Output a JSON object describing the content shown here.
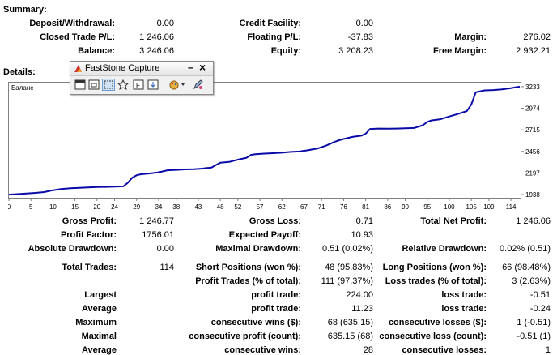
{
  "summary": {
    "heading": "Summary:",
    "deposit_label": "Deposit/Withdrawal:",
    "deposit_value": "0.00",
    "credit_label": "Credit Facility:",
    "credit_value": "0.00",
    "closed_label": "Closed Trade P/L:",
    "closed_value": "1 246.06",
    "floating_label": "Floating P/L:",
    "floating_value": "-37.83",
    "margin_label": "Margin:",
    "margin_value": "276.02",
    "balance_label": "Balance:",
    "balance_value": "3 246.06",
    "equity_label": "Equity:",
    "equity_value": "3 208.23",
    "free_margin_label": "Free Margin:",
    "free_margin_value": "2 932.21"
  },
  "details": {
    "heading": "Details:"
  },
  "capture_window": {
    "title": "FastStone Capture",
    "minimize": "–",
    "close": "×",
    "tools": [
      "capture-active-window-icon",
      "capture-window-object-icon",
      "capture-rectangle-icon",
      "capture-freehand-icon",
      "capture-fullscreen-icon",
      "capture-scrolling-icon",
      "output-settings-icon",
      "editor-icon"
    ],
    "accent": "#d0302a"
  },
  "chart_data": {
    "type": "line",
    "title": "Баланс",
    "line_color": "#0a0aa8",
    "grid": false,
    "x_ticks": [
      0,
      5,
      10,
      15,
      20,
      24,
      29,
      34,
      38,
      43,
      48,
      52,
      57,
      62,
      67,
      71,
      76,
      81,
      86,
      90,
      95,
      100,
      105,
      109,
      114
    ],
    "y_ticks": [
      1938,
      2197,
      2456,
      2715,
      2974,
      3233
    ],
    "xlim": [
      0,
      116
    ],
    "ylim": [
      1900,
      3290
    ],
    "series": [
      {
        "x": [
          0,
          3,
          6,
          8,
          10,
          12,
          14,
          16,
          18,
          20,
          22,
          24,
          26,
          27,
          28,
          29,
          30,
          32,
          34,
          36,
          38,
          40,
          42,
          44,
          45,
          46,
          47,
          48,
          50,
          52,
          54,
          55,
          56,
          58,
          60,
          62,
          64,
          66,
          68,
          70,
          72,
          74,
          75,
          76,
          78,
          80,
          81,
          82,
          84,
          86,
          88,
          90,
          92,
          94,
          95,
          96,
          98,
          100,
          102,
          104,
          105,
          106,
          108,
          110,
          112,
          114,
          116
        ],
        "y": [
          1938,
          1948,
          1958,
          1968,
          1990,
          2006,
          2014,
          2020,
          2024,
          2028,
          2030,
          2033,
          2037,
          2080,
          2140,
          2170,
          2182,
          2192,
          2205,
          2230,
          2234,
          2240,
          2243,
          2250,
          2258,
          2262,
          2293,
          2320,
          2330,
          2357,
          2380,
          2415,
          2422,
          2430,
          2435,
          2440,
          2450,
          2455,
          2472,
          2490,
          2525,
          2572,
          2590,
          2605,
          2630,
          2645,
          2668,
          2725,
          2730,
          2728,
          2730,
          2733,
          2737,
          2770,
          2810,
          2828,
          2842,
          2875,
          2905,
          2940,
          3020,
          3165,
          3188,
          3192,
          3200,
          3215,
          3233
        ]
      }
    ]
  },
  "stats_rows": [
    {
      "c1l": "Gross Profit:",
      "c1v": "1 246.77",
      "c2l": "Gross Loss:",
      "c2v": "0.71",
      "c3l": "Total Net Profit:",
      "c3v": "1 246.06"
    },
    {
      "c1l": "Profit Factor:",
      "c1v": "1756.01",
      "c2l": "Expected Payoff:",
      "c2v": "10.93",
      "c3l": "",
      "c3v": ""
    },
    {
      "c1l": "Absolute Drawdown:",
      "c1v": "0.00",
      "c2l": "Maximal Drawdown:",
      "c2v": "0.51 (0.02%)",
      "c3l": "Relative Drawdown:",
      "c3v": "0.02% (0.51)"
    },
    {
      "c1l": "Total Trades:",
      "c1v": "114",
      "c2l": "Short Positions (won %):",
      "c2v": "48 (95.83%)",
      "c3l": "Long Positions (won %):",
      "c3v": "66 (98.48%)"
    },
    {
      "c1l": "",
      "c1v": "",
      "c2l": "Profit Trades (% of total):",
      "c2v": "111 (97.37%)",
      "c3l": "Loss trades (% of total):",
      "c3v": "3 (2.63%)"
    },
    {
      "c1l": "Largest",
      "c1v": "",
      "c2l": "profit trade:",
      "c2v": "224.00",
      "c3l": "loss trade:",
      "c3v": "-0.51"
    },
    {
      "c1l": "Average",
      "c1v": "",
      "c2l": "profit trade:",
      "c2v": "11.23",
      "c3l": "loss trade:",
      "c3v": "-0.24"
    },
    {
      "c1l": "Maximum",
      "c1v": "",
      "c2l": "consecutive wins ($):",
      "c2v": "68 (635.15)",
      "c3l": "consecutive losses ($):",
      "c3v": "1 (-0.51)"
    },
    {
      "c1l": "Maximal",
      "c1v": "",
      "c2l": "consecutive profit (count):",
      "c2v": "635.15 (68)",
      "c3l": "consecutive loss (count):",
      "c3v": "-0.51 (1)"
    },
    {
      "c1l": "Average",
      "c1v": "",
      "c2l": "consecutive wins:",
      "c2v": "28",
      "c3l": "consecutive losses:",
      "c3v": "1"
    }
  ]
}
